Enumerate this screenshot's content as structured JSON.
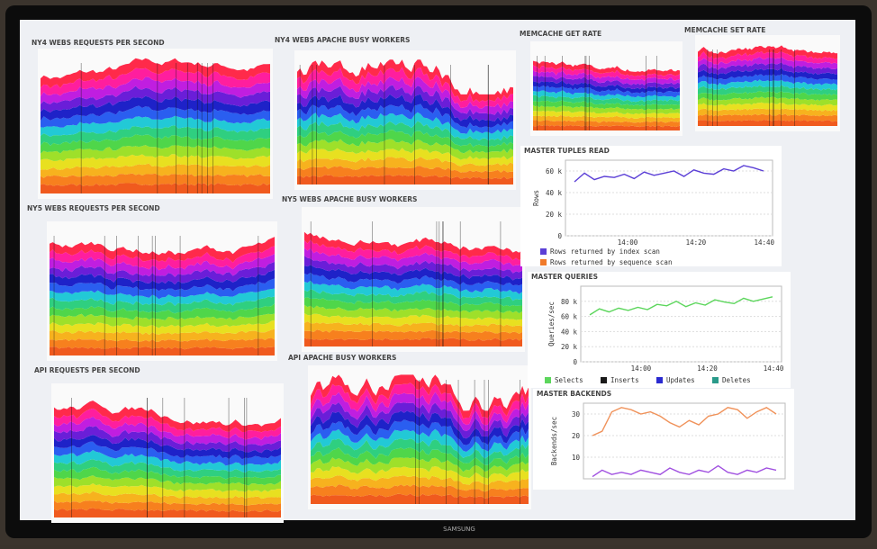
{
  "brand": "SAMSUNG",
  "panels": [
    {
      "title": "NY4 WEBS REQUESTS PER SECOND"
    },
    {
      "title": "NY5 WEBS REQUESTS PER SECOND"
    },
    {
      "title": "API REQUESTS PER SECOND"
    },
    {
      "title": "NY4 WEBS APACHE BUSY WORKERS"
    },
    {
      "title": "NY5 WEBS APACHE BUSY WORKERS"
    },
    {
      "title": "API APACHE BUSY WORKERS"
    },
    {
      "title": "MEMCACHE GET RATE"
    },
    {
      "title": "MEMCACHE SET RATE"
    }
  ],
  "master_panels": [
    {
      "title": "MASTER TUPLES READ",
      "ylabel": "Rows",
      "ylim": [
        0,
        70000
      ],
      "yticks": [
        0,
        {
          "value": 20000,
          "label": "20 k"
        },
        {
          "value": 40000,
          "label": "40 k"
        },
        {
          "value": 60000,
          "label": "60 k"
        }
      ],
      "xticks": [
        "14:00",
        "14:20",
        "14:40"
      ],
      "series": [
        {
          "name": "Rows returned by index scan",
          "color": "#5b3fd6",
          "values": [
            50000,
            58000,
            52000,
            55000,
            54000,
            57000,
            53000,
            59000,
            56000,
            58000,
            60000,
            55000,
            61000,
            58000,
            57000,
            62000,
            60000,
            65000,
            63000,
            60000
          ]
        },
        {
          "name": "Rows returned by sequence scan",
          "color": "#f07a2a"
        }
      ]
    },
    {
      "title": "MASTER QUERIES",
      "ylabel": "Queries/sec",
      "ylim": [
        0,
        100000
      ],
      "yticks": [
        0,
        {
          "value": 20000,
          "label": "20 k"
        },
        {
          "value": 40000,
          "label": "40 k"
        },
        {
          "value": 60000,
          "label": "60 k"
        },
        {
          "value": 80000,
          "label": "80 k"
        }
      ],
      "xticks": [
        "14:00",
        "14:20",
        "14:40"
      ],
      "series": [
        {
          "name": "Selects",
          "color": "#5cd65c",
          "values": [
            62000,
            70000,
            66000,
            71000,
            68000,
            72000,
            69000,
            76000,
            74000,
            80000,
            73000,
            78000,
            75000,
            82000,
            79000,
            77000,
            84000,
            80000,
            83000,
            86000
          ]
        },
        {
          "name": "Inserts",
          "color": "#1a1a1a"
        },
        {
          "name": "Updates",
          "color": "#2a2ad0"
        },
        {
          "name": "Deletes",
          "color": "#2a9a8a"
        }
      ]
    },
    {
      "title": "MASTER BACKENDS",
      "ylabel": "Backends/sec",
      "ylim": [
        0,
        35
      ],
      "yticks": [
        10,
        20,
        30
      ],
      "series": [
        {
          "color": "#f0925a",
          "values": [
            20,
            22,
            31,
            33,
            32,
            30,
            31,
            29,
            26,
            24,
            27,
            25,
            29,
            30,
            33,
            32,
            28,
            31,
            33,
            30
          ]
        },
        {
          "color": "#a050e0",
          "values": [
            1,
            4,
            2,
            3,
            2,
            4,
            3,
            2,
            5,
            3,
            2,
            4,
            3,
            6,
            3,
            2,
            4,
            3,
            5,
            4
          ]
        }
      ]
    }
  ]
}
